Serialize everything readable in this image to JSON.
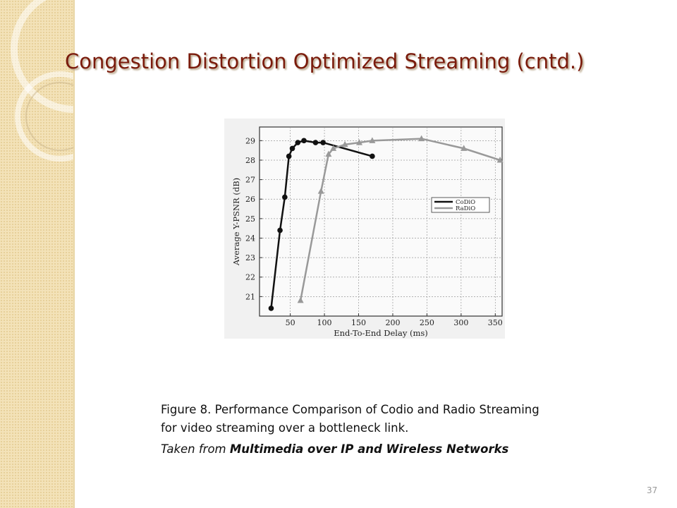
{
  "slide": {
    "title": "Congestion Distortion Optimized Streaming (cntd.)",
    "caption": {
      "line1": "Figure 8. Performance Comparison of Codio and Radio Streaming",
      "line2": "for video streaming over a bottleneck link.",
      "source_prefix": "Taken from",
      "source_title": "Multimedia over IP and Wireless Networks"
    },
    "page_number": "37"
  },
  "chart_data": {
    "type": "line",
    "xlabel": "End-To-End Delay (ms)",
    "ylabel": "Average Y-PSNR (dB)",
    "xlim": [
      5,
      360
    ],
    "xticks": [
      50,
      100,
      150,
      200,
      250,
      300,
      350
    ],
    "ylim": [
      20,
      29.7
    ],
    "yticks": [
      21,
      22,
      23,
      24,
      25,
      26,
      27,
      28,
      29
    ],
    "grid": true,
    "legend": "right",
    "series": [
      {
        "name": "CoDiO",
        "color": "#111111",
        "marker": "circle",
        "x": [
          22,
          35,
          42,
          48,
          53,
          61,
          70,
          87,
          98,
          170
        ],
        "values": [
          20.4,
          24.4,
          26.1,
          28.2,
          28.6,
          28.9,
          29.0,
          28.9,
          28.9,
          28.2
        ]
      },
      {
        "name": "RaDiO",
        "color": "#999999",
        "marker": "triangle",
        "x": [
          65,
          95,
          106,
          113,
          130,
          151,
          170,
          242,
          304,
          357
        ],
        "values": [
          20.8,
          26.4,
          28.3,
          28.6,
          28.8,
          28.9,
          29.0,
          29.1,
          28.6,
          28.0
        ]
      }
    ]
  }
}
